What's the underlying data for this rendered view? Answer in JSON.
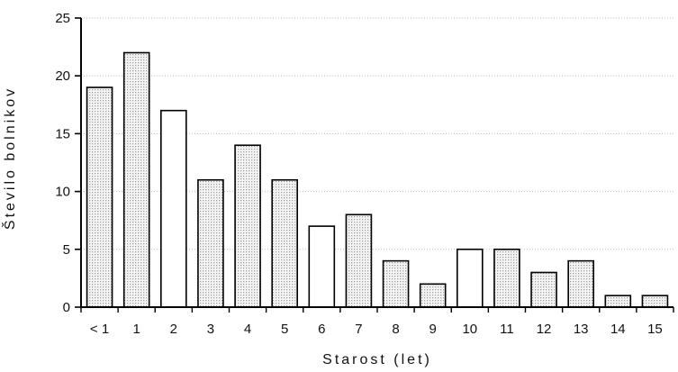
{
  "chart_data": {
    "type": "bar",
    "title": "",
    "xlabel": "Starost (let)",
    "ylabel": "Število bolnikov",
    "categories": [
      "< 1",
      "1",
      "2",
      "3",
      "4",
      "5",
      "6",
      "7",
      "8",
      "9",
      "10",
      "11",
      "12",
      "13",
      "14",
      "15"
    ],
    "values": [
      19,
      22,
      17,
      11,
      14,
      11,
      7,
      8,
      4,
      2,
      5,
      5,
      3,
      4,
      1,
      1
    ],
    "bar_fill": [
      "dotted",
      "dotted",
      "white",
      "dotted",
      "dotted",
      "dotted",
      "white",
      "dotted",
      "dotted",
      "dotted",
      "white",
      "dotted",
      "dotted",
      "dotted",
      "dotted",
      "dotted"
    ],
    "ylim": [
      0,
      25
    ],
    "yticks": [
      0,
      5,
      10,
      15,
      20,
      25
    ],
    "grid": true,
    "colors": {
      "bar_outline": "#000000",
      "bar_dotted": "#e4e4e4",
      "bar_white": "#ffffff",
      "grid": "#bdbdbd",
      "axis": "#000000"
    }
  }
}
